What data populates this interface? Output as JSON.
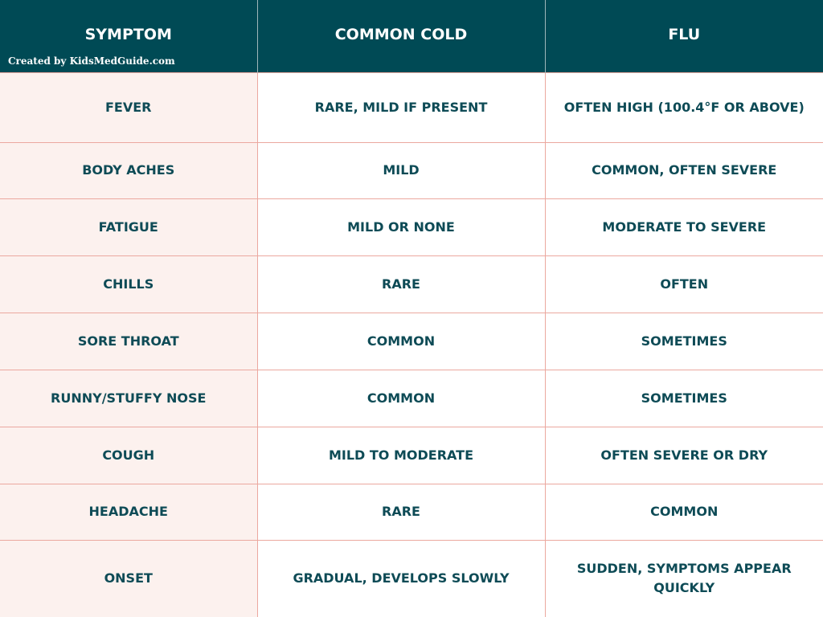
{
  "header": {
    "columns": [
      "SYMPTOM",
      "COMMON COLD",
      "FLU"
    ],
    "credit": "Created by KidsMedGuide.com"
  },
  "table": {
    "rows": [
      [
        "FEVER",
        "RARE, MILD IF PRESENT",
        "OFTEN HIGH (100.4°F OR ABOVE)"
      ],
      [
        "BODY ACHES",
        "MILD",
        "COMMON, OFTEN SEVERE"
      ],
      [
        "FATIGUE",
        "MILD OR NONE",
        "MODERATE TO SEVERE"
      ],
      [
        "CHILLS",
        "RARE",
        "OFTEN"
      ],
      [
        "SORE THROAT",
        "COMMON",
        "SOMETIMES"
      ],
      [
        "RUNNY/STUFFY NOSE",
        "COMMON",
        "SOMETIMES"
      ],
      [
        "COUGH",
        "MILD TO MODERATE",
        "OFTEN SEVERE OR DRY"
      ],
      [
        "HEADACHE",
        "RARE",
        "COMMON"
      ],
      [
        "ONSET",
        "GRADUAL, DEVELOPS SLOWLY",
        "SUDDEN, SYMPTOMS APPEAR QUICKLY"
      ]
    ]
  }
}
